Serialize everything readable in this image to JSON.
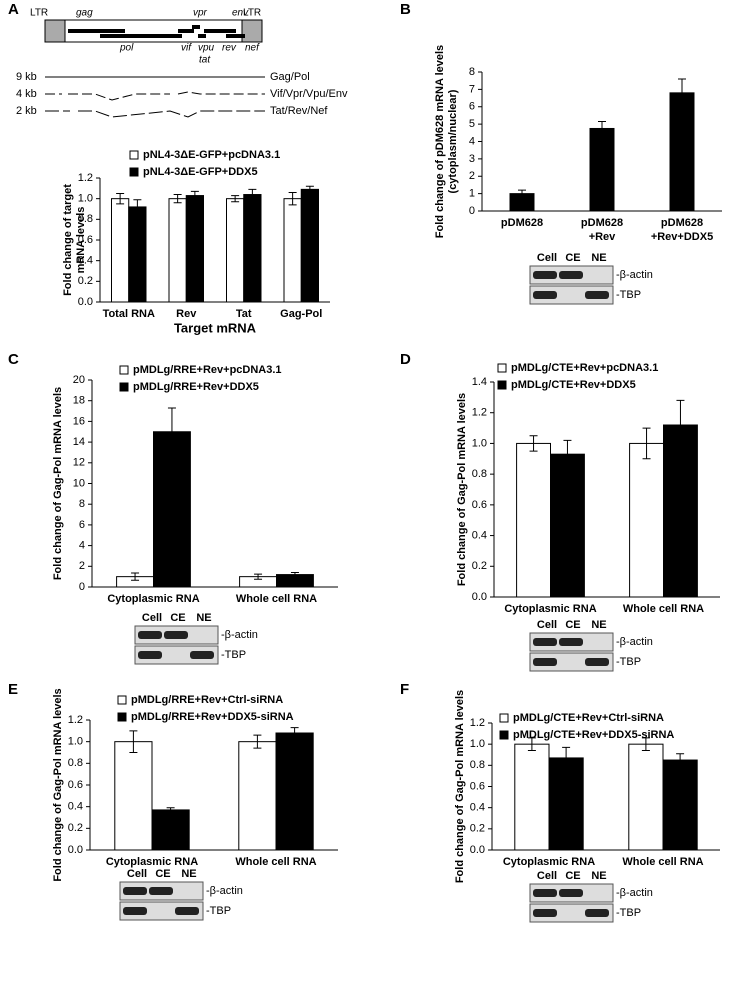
{
  "genome_map": {
    "ltr_labels": [
      "LTR",
      "LTR"
    ],
    "genes": [
      "gag",
      "vpr",
      "env",
      "pol",
      "vif",
      "vpu",
      "rev",
      "nef",
      "tat"
    ],
    "transcripts": [
      {
        "size": "9 kb",
        "label": "Gag/Pol"
      },
      {
        "size": "4 kb",
        "label": "Vif/Vpr/Vpu/Env"
      },
      {
        "size": "2 kb",
        "label": "Tat/Rev/Nef"
      }
    ]
  },
  "chart_data": [
    {
      "type": "bar",
      "panel": "A",
      "y_label": [
        "Fold change of target",
        "mRNA levels"
      ],
      "x_label": "Target mRNA",
      "categories": [
        "Total RNA",
        "Rev",
        "Tat",
        "Gag-Pol"
      ],
      "series": [
        {
          "name": "pNL4-3ΔE-GFP+pcDNA3.1",
          "color": "#ffffff",
          "values": [
            1.0,
            1.0,
            1.0,
            1.0
          ],
          "errors": [
            0.05,
            0.04,
            0.03,
            0.06
          ]
        },
        {
          "name": "pNL4-3ΔE-GFP+DDX5",
          "color": "#000000",
          "values": [
            0.92,
            1.03,
            1.04,
            1.09
          ],
          "errors": [
            0.07,
            0.04,
            0.05,
            0.03
          ]
        }
      ],
      "ylim": [
        0,
        1.2
      ],
      "yticks": [
        {
          "value": 0,
          "label": "0.0"
        },
        0.2,
        0.4,
        0.6,
        0.8,
        {
          "value": 1,
          "label": "1.0"
        },
        1.2
      ]
    },
    {
      "type": "bar",
      "panel": "B",
      "y_label": [
        "Fold change of pDM628 mRNA levels",
        "(cytoplasm/nuclear)"
      ],
      "categories": [
        [
          "pDM628"
        ],
        [
          "pDM628",
          "+Rev"
        ],
        [
          "pDM628",
          "+Rev+DDX5"
        ]
      ],
      "color": "#000000",
      "values": [
        1.0,
        4.75,
        6.8
      ],
      "errors": [
        0.2,
        0.4,
        0.8
      ],
      "ylim": [
        0,
        8
      ],
      "yticks": [
        0,
        1,
        2,
        3,
        4,
        5,
        6,
        7,
        8
      ],
      "blot": {
        "lanes": [
          "Cell",
          "CE",
          "NE"
        ],
        "bands": [
          "-β-actin",
          "-TBP"
        ]
      }
    },
    {
      "type": "bar",
      "panel": "C",
      "y_label": [
        "Fold change of Gag-Pol mRNA levels"
      ],
      "categories": [
        "Cytoplasmic RNA",
        "Whole cell RNA"
      ],
      "series": [
        {
          "name": "pMDLg/RRE+Rev+pcDNA3.1",
          "color": "#ffffff",
          "values": [
            1.0,
            1.0
          ],
          "errors": [
            0.35,
            0.25
          ]
        },
        {
          "name": "pMDLg/RRE+Rev+DDX5",
          "color": "#000000",
          "values": [
            15.0,
            1.2
          ],
          "errors": [
            2.3,
            0.2
          ]
        }
      ],
      "ylim": [
        0,
        20
      ],
      "yticks": [
        0,
        2,
        4,
        6,
        8,
        10,
        12,
        14,
        16,
        18,
        20
      ],
      "blot": {
        "lanes": [
          "Cell",
          "CE",
          "NE"
        ],
        "bands": [
          "-β-actin",
          "-TBP"
        ]
      }
    },
    {
      "type": "bar",
      "panel": "D",
      "y_label": [
        "Fold change of Gag-Pol mRNA levels"
      ],
      "categories": [
        "Cytoplasmic RNA",
        "Whole cell RNA"
      ],
      "series": [
        {
          "name": "pMDLg/CTE+Rev+pcDNA3.1",
          "color": "#ffffff",
          "values": [
            1.0,
            1.0
          ],
          "errors": [
            0.05,
            0.1
          ]
        },
        {
          "name": "pMDLg/CTE+Rev+DDX5",
          "color": "#000000",
          "values": [
            0.93,
            1.12
          ],
          "errors": [
            0.09,
            0.16
          ]
        }
      ],
      "ylim": [
        0,
        1.4
      ],
      "yticks": [
        {
          "value": 0,
          "label": "0.0"
        },
        0.2,
        0.4,
        0.6,
        0.8,
        {
          "value": 1,
          "label": "1.0"
        },
        1.2,
        1.4
      ],
      "blot": {
        "lanes": [
          "Cell",
          "CE",
          "NE"
        ],
        "bands": [
          "-β-actin",
          "-TBP"
        ]
      }
    },
    {
      "type": "bar",
      "panel": "E",
      "y_label": [
        "Fold change of Gag-Pol mRNA levels"
      ],
      "categories": [
        "Cytoplasmic RNA",
        "Whole cell RNA"
      ],
      "series": [
        {
          "name": "pMDLg/RRE+Rev+Ctrl-siRNA",
          "color": "#ffffff",
          "values": [
            1.0,
            1.0
          ],
          "errors": [
            0.1,
            0.06
          ]
        },
        {
          "name": "pMDLg/RRE+Rev+DDX5-siRNA",
          "color": "#000000",
          "values": [
            0.37,
            1.08
          ],
          "errors": [
            0.02,
            0.05
          ]
        }
      ],
      "ylim": [
        0,
        1.2
      ],
      "yticks": [
        {
          "value": 0,
          "label": "0.0"
        },
        0.2,
        0.4,
        0.6,
        0.8,
        {
          "value": 1,
          "label": "1.0"
        },
        1.2
      ],
      "blot": {
        "lanes": [
          "Cell",
          "CE",
          "NE"
        ],
        "bands": [
          "-β-actin",
          "-TBP"
        ]
      }
    },
    {
      "type": "bar",
      "panel": "F",
      "y_label": [
        "Fold change of Gag-Pol mRNA levels"
      ],
      "categories": [
        "Cytoplasmic RNA",
        "Whole cell RNA"
      ],
      "series": [
        {
          "name": "pMDLg/CTE+Rev+Ctrl-siRNA",
          "color": "#ffffff",
          "values": [
            1.0,
            1.0
          ],
          "errors": [
            0.06,
            0.06
          ]
        },
        {
          "name": "pMDLg/CTE+Rev+DDX5-siRNA",
          "color": "#000000",
          "values": [
            0.87,
            0.85
          ],
          "errors": [
            0.1,
            0.06
          ]
        }
      ],
      "ylim": [
        0,
        1.2
      ],
      "yticks": [
        {
          "value": 0,
          "label": "0.0"
        },
        0.2,
        0.4,
        0.6,
        0.8,
        {
          "value": 1,
          "label": "1.0"
        },
        1.2
      ],
      "blot": {
        "lanes": [
          "Cell",
          "CE",
          "NE"
        ],
        "bands": [
          "-β-actin",
          "-TBP"
        ]
      }
    }
  ]
}
